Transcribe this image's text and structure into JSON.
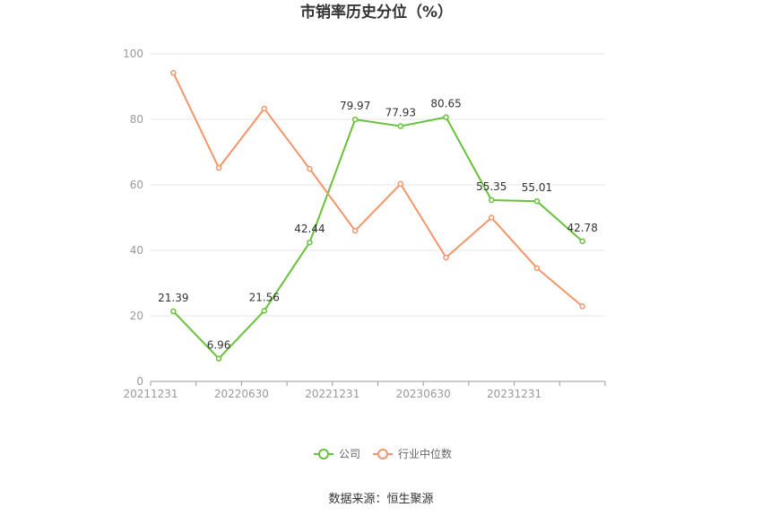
{
  "source": "数据来源：恒生聚源",
  "chart_data": {
    "type": "line",
    "title": "市销率历史分位（%）",
    "xlabel": "",
    "ylabel": "",
    "ylim": [
      0,
      100
    ],
    "yticks": [
      0,
      20,
      40,
      60,
      80,
      100
    ],
    "grid": true,
    "legend_position": "bottom",
    "x": [
      "20211231",
      "20220331",
      "20220630",
      "20220930",
      "20221231",
      "20230331",
      "20230630",
      "20230930",
      "20231231",
      "20240331"
    ],
    "x_tick_labels": [
      "20211231",
      "",
      "20220630",
      "",
      "20221231",
      "",
      "20230630",
      "",
      "20231231",
      ""
    ],
    "series": [
      {
        "name": "公司",
        "color": "#67c23a",
        "values": [
          21.39,
          6.96,
          21.56,
          42.44,
          79.97,
          77.93,
          80.65,
          55.35,
          55.01,
          42.78
        ],
        "labels": [
          "21.39",
          "6.96",
          "21.56",
          "42.44",
          "79.97",
          "77.93",
          "80.65",
          "55.35",
          "55.01",
          "42.78"
        ]
      },
      {
        "name": "行业中位数",
        "color": "#f4956a",
        "values": [
          94.2,
          65.2,
          83.3,
          64.9,
          46.0,
          60.3,
          37.8,
          50.0,
          34.6,
          22.9
        ]
      }
    ]
  }
}
